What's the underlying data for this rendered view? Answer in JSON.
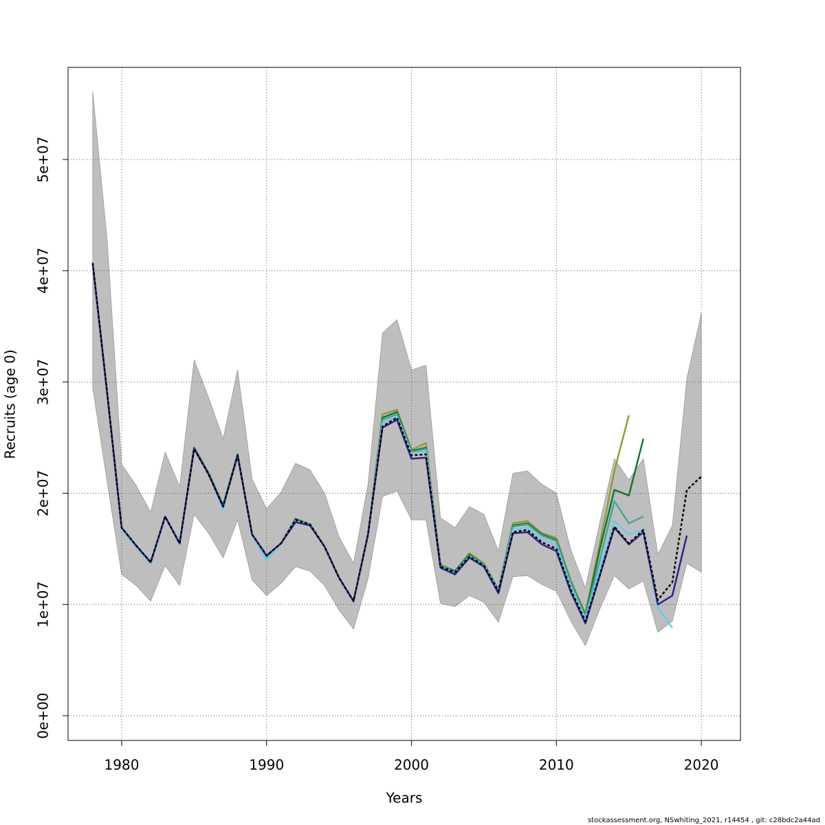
{
  "chart_data": {
    "type": "line",
    "x_label": "Years",
    "y_label": "Recruits (age 0)",
    "footer": "stockassessment.org, NSwhiting_2021, r14454 , git: c28bdc2a44ad",
    "xlim": [
      1976.3,
      2022.7
    ],
    "ylim": [
      -2220000.0,
      58280000.0
    ],
    "xticks": [
      1980,
      1990,
      2000,
      2010,
      2020
    ],
    "yticks": [
      {
        "value": 0,
        "label": "0e+00"
      },
      {
        "value": 10000000.0,
        "label": "1e+07"
      },
      {
        "value": 20000000.0,
        "label": "2e+07"
      },
      {
        "value": 30000000.0,
        "label": "3e+07"
      },
      {
        "value": 40000000.0,
        "label": "4e+07"
      },
      {
        "value": 50000000.0,
        "label": "5e+07"
      }
    ],
    "grid": true,
    "x": [
      1978,
      1979,
      1980,
      1981,
      1982,
      1983,
      1984,
      1985,
      1986,
      1987,
      1988,
      1989,
      1990,
      1991,
      1992,
      1993,
      1994,
      1995,
      1996,
      1997,
      1998,
      1999,
      2000,
      2001,
      2002,
      2003,
      2004,
      2005,
      2006,
      2007,
      2008,
      2009,
      2010,
      2011,
      2012,
      2013,
      2014,
      2015,
      2016,
      2017,
      2018,
      2019,
      2020
    ],
    "band": {
      "color": "#bebebe",
      "upper": [
        56100000.0,
        42700000.0,
        22600000.0,
        20700000.0,
        18300000.0,
        23700000.0,
        20600000.0,
        32000000.0,
        28600000.0,
        24900000.0,
        31100000.0,
        21300000.0,
        18600000.0,
        20100000.0,
        22700000.0,
        22100000.0,
        20000000.0,
        16100000.0,
        13700000.0,
        20800000.0,
        34400000.0,
        35600000.0,
        31100000.0,
        31500000.0,
        17800000.0,
        16900000.0,
        18800000.0,
        18100000.0,
        14800000.0,
        21800000.0,
        22000000.0,
        20800000.0,
        20000000.0,
        14900000.0,
        11500000.0,
        17400000.0,
        23100000.0,
        21200000.0,
        23100000.0,
        14500000.0,
        17100000.0,
        30300000.0,
        36200000.0
      ],
      "lower": [
        29500000.0,
        21000000.0,
        12700000.0,
        11700000.0,
        10300000.0,
        13500000.0,
        11700000.0,
        18100000.0,
        16400000.0,
        14200000.0,
        17600000.0,
        12200000.0,
        10800000.0,
        11900000.0,
        13400000.0,
        13000000.0,
        11700000.0,
        9500000.0,
        7800000.0,
        12300000.0,
        19700000.0,
        20200000.0,
        17600000.0,
        17600000.0,
        10100000.0,
        9800000.0,
        10800000.0,
        10200000.0,
        8400000.0,
        12500000.0,
        12600000.0,
        11800000.0,
        11200000.0,
        8500000.0,
        6300000.0,
        9600000.0,
        12600000.0,
        11400000.0,
        12100000.0,
        7500000.0,
        8500000.0,
        13700000.0,
        12900000.0
      ]
    },
    "series": [
      {
        "color": "#999933",
        "values": [
          40600000.0,
          29000000.0,
          16800000.0,
          15200000.0,
          13700000.0,
          17900000.0,
          15400000.0,
          24100000.0,
          21800000.0,
          18900000.0,
          23500000.0,
          16300000.0,
          14300000.0,
          15500000.0,
          17700000.0,
          17200000.0,
          15200000.0,
          12400000.0,
          10300000.0,
          16300000.0,
          27100000.0,
          27500000.0,
          23900000.0,
          24500000.0,
          13600000.0,
          13000000.0,
          14600000.0,
          13700000.0,
          11300000.0,
          17300000.0,
          17500000.0,
          16400000.0,
          16000000.0,
          12100000.0,
          9200000.0,
          15500000.0,
          22000000.0,
          27000000.0,
          null,
          null,
          null,
          null,
          null
        ]
      },
      {
        "color": "#117733",
        "values": [
          40600000.0,
          29000000.0,
          16800000.0,
          15200000.0,
          13700000.0,
          17900000.0,
          15400000.0,
          24100000.0,
          21800000.0,
          18900000.0,
          23500000.0,
          16300000.0,
          14300000.0,
          15500000.0,
          17700000.0,
          17200000.0,
          15200000.0,
          12400000.0,
          10300000.0,
          16300000.0,
          26800000.0,
          27300000.0,
          23800000.0,
          24100000.0,
          13500000.0,
          13000000.0,
          14500000.0,
          13600000.0,
          11300000.0,
          17100000.0,
          17300000.0,
          16300000.0,
          15800000.0,
          12000000.0,
          9000000.0,
          15000000.0,
          20300000.0,
          19800000.0,
          24900000.0,
          null,
          null,
          null,
          null
        ]
      },
      {
        "color": "#44aa99",
        "values": [
          40600000.0,
          29000000.0,
          16800000.0,
          15200000.0,
          13700000.0,
          17900000.0,
          15400000.0,
          24000000.0,
          21700000.0,
          18800000.0,
          23400000.0,
          16300000.0,
          14200000.0,
          15500000.0,
          17600000.0,
          17200000.0,
          15200000.0,
          12400000.0,
          10300000.0,
          16300000.0,
          26600000.0,
          27100000.0,
          23700000.0,
          24000000.0,
          13500000.0,
          12900000.0,
          14400000.0,
          13600000.0,
          11200000.0,
          17000000.0,
          17200000.0,
          16200000.0,
          15700000.0,
          11900000.0,
          8900000.0,
          14000000.0,
          19300000.0,
          17300000.0,
          17900000.0,
          null,
          null,
          null,
          null
        ]
      },
      {
        "color": "#66ccee",
        "values": [
          40600000.0,
          29000000.0,
          16800000.0,
          15200000.0,
          13700000.0,
          17900000.0,
          15400000.0,
          24000000.0,
          21700000.0,
          18600000.0,
          23400000.0,
          16200000.0,
          14000000.0,
          15500000.0,
          17500000.0,
          17100000.0,
          15200000.0,
          12400000.0,
          10300000.0,
          16300000.0,
          26300000.0,
          26900000.0,
          23600000.0,
          23800000.0,
          13400000.0,
          12800000.0,
          14300000.0,
          13500000.0,
          11200000.0,
          16700000.0,
          16900000.0,
          15900000.0,
          15300000.0,
          11600000.0,
          8700000.0,
          13200000.0,
          17500000.0,
          16300000.0,
          16700000.0,
          9700000.0,
          7900000.0,
          null,
          null
        ]
      },
      {
        "color": "#332288",
        "values": [
          40700000.0,
          29000000.0,
          16900000.0,
          15300000.0,
          13800000.0,
          17900000.0,
          15500000.0,
          24000000.0,
          21700000.0,
          18800000.0,
          23400000.0,
          16300000.0,
          14400000.0,
          15500000.0,
          17400000.0,
          17100000.0,
          15200000.0,
          12400000.0,
          10300000.0,
          16300000.0,
          25900000.0,
          26600000.0,
          23100000.0,
          23200000.0,
          13300000.0,
          12700000.0,
          14200000.0,
          13400000.0,
          11000000.0,
          16400000.0,
          16500000.0,
          15400000.0,
          14800000.0,
          11100000.0,
          8300000.0,
          12600000.0,
          16900000.0,
          15400000.0,
          16500000.0,
          10000000.0,
          10800000.0,
          16200000.0,
          null
        ]
      },
      {
        "color": "#000000",
        "dash": true,
        "values": [
          40700000.0,
          29000000.0,
          16900000.0,
          15300000.0,
          13800000.0,
          17900000.0,
          15500000.0,
          24000000.0,
          21700000.0,
          18800000.0,
          23400000.0,
          16300000.0,
          14400000.0,
          15500000.0,
          17600000.0,
          17200000.0,
          15200000.0,
          12400000.0,
          10300000.0,
          16300000.0,
          26000000.0,
          26800000.0,
          23400000.0,
          23500000.0,
          13400000.0,
          12900000.0,
          14300000.0,
          13500000.0,
          11200000.0,
          16500000.0,
          16700000.0,
          15600000.0,
          15000000.0,
          11300000.0,
          8500000.0,
          12700000.0,
          17000000.0,
          15500000.0,
          16700000.0,
          10400000.0,
          12000000.0,
          20300000.0,
          21500000.0
        ]
      }
    ]
  }
}
